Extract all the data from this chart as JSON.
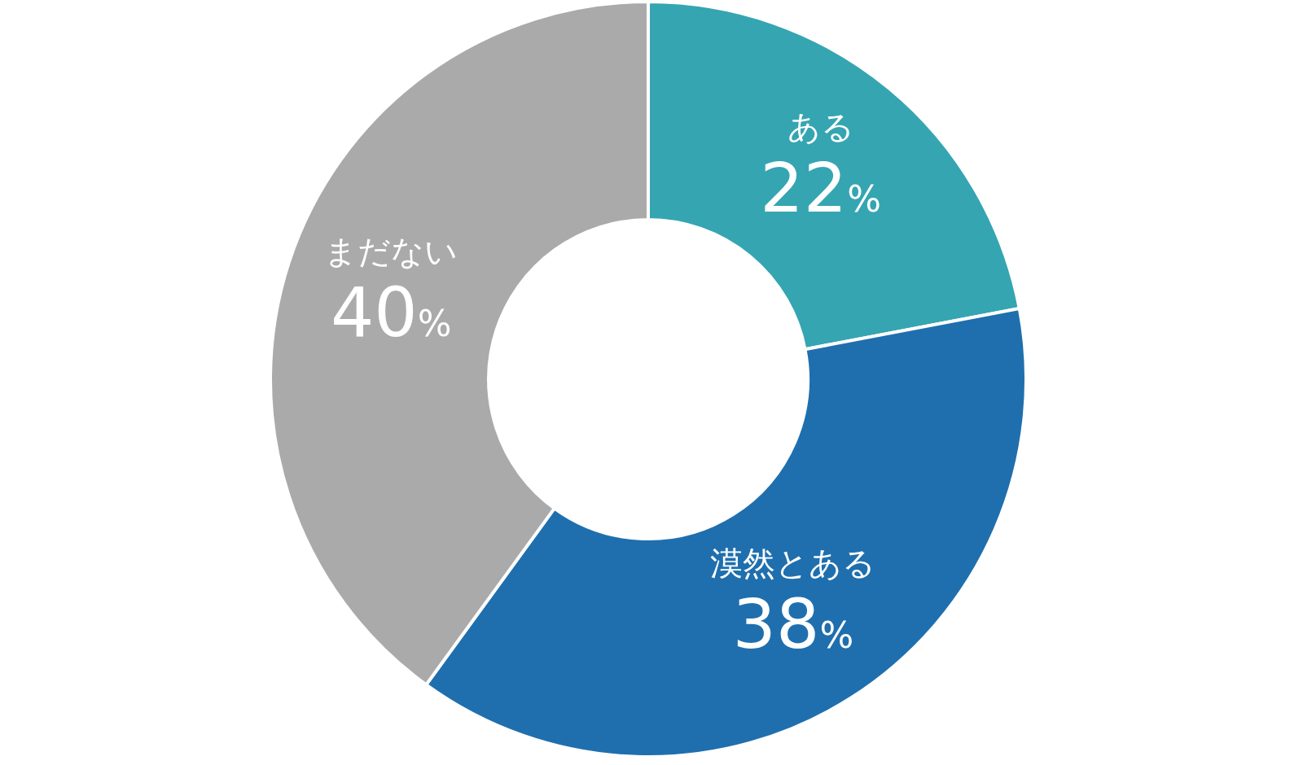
{
  "chart_data": {
    "type": "donut",
    "categories": [
      "ある",
      "漠然とある",
      "まだない"
    ],
    "values": [
      22,
      38,
      40
    ],
    "colors": [
      "#35a5b2",
      "#1f6fae",
      "#aaaaaa"
    ],
    "value_labels": [
      "22%",
      "38%",
      "40%"
    ]
  }
}
